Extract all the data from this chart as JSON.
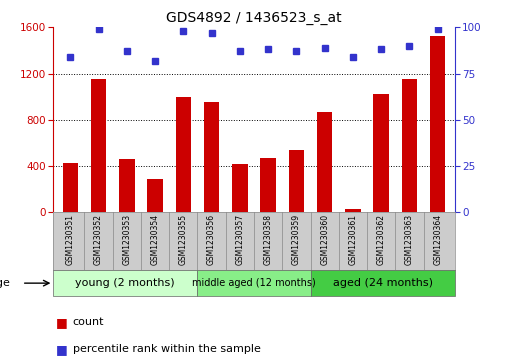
{
  "title": "GDS4892 / 1436523_s_at",
  "samples": [
    "GSM1230351",
    "GSM1230352",
    "GSM1230353",
    "GSM1230354",
    "GSM1230355",
    "GSM1230356",
    "GSM1230357",
    "GSM1230358",
    "GSM1230359",
    "GSM1230360",
    "GSM1230361",
    "GSM1230362",
    "GSM1230363",
    "GSM1230364"
  ],
  "counts": [
    430,
    1150,
    460,
    290,
    1000,
    950,
    420,
    470,
    540,
    870,
    30,
    1020,
    1150,
    1520
  ],
  "percentiles": [
    84,
    99,
    87,
    82,
    98,
    97,
    87,
    88,
    87,
    89,
    84,
    88,
    90,
    99
  ],
  "bar_color": "#cc0000",
  "dot_color": "#3333cc",
  "ylim_left": [
    0,
    1600
  ],
  "ylim_right": [
    0,
    100
  ],
  "yticks_left": [
    0,
    400,
    800,
    1200,
    1600
  ],
  "yticks_right": [
    0,
    25,
    50,
    75,
    100
  ],
  "groups": [
    {
      "label": "young (2 months)",
      "start": 0,
      "end": 5,
      "color": "#ccffcc",
      "fontsize": 8
    },
    {
      "label": "middle aged (12 months)",
      "start": 5,
      "end": 9,
      "color": "#88ee88",
      "fontsize": 7
    },
    {
      "label": "aged (24 months)",
      "start": 9,
      "end": 14,
      "color": "#44cc44",
      "fontsize": 8
    }
  ],
  "age_label": "age",
  "legend_count": "count",
  "legend_pct": "percentile rank within the sample",
  "title_fontsize": 10,
  "tick_labelsize": 7.5,
  "sample_fontsize": 5.5
}
